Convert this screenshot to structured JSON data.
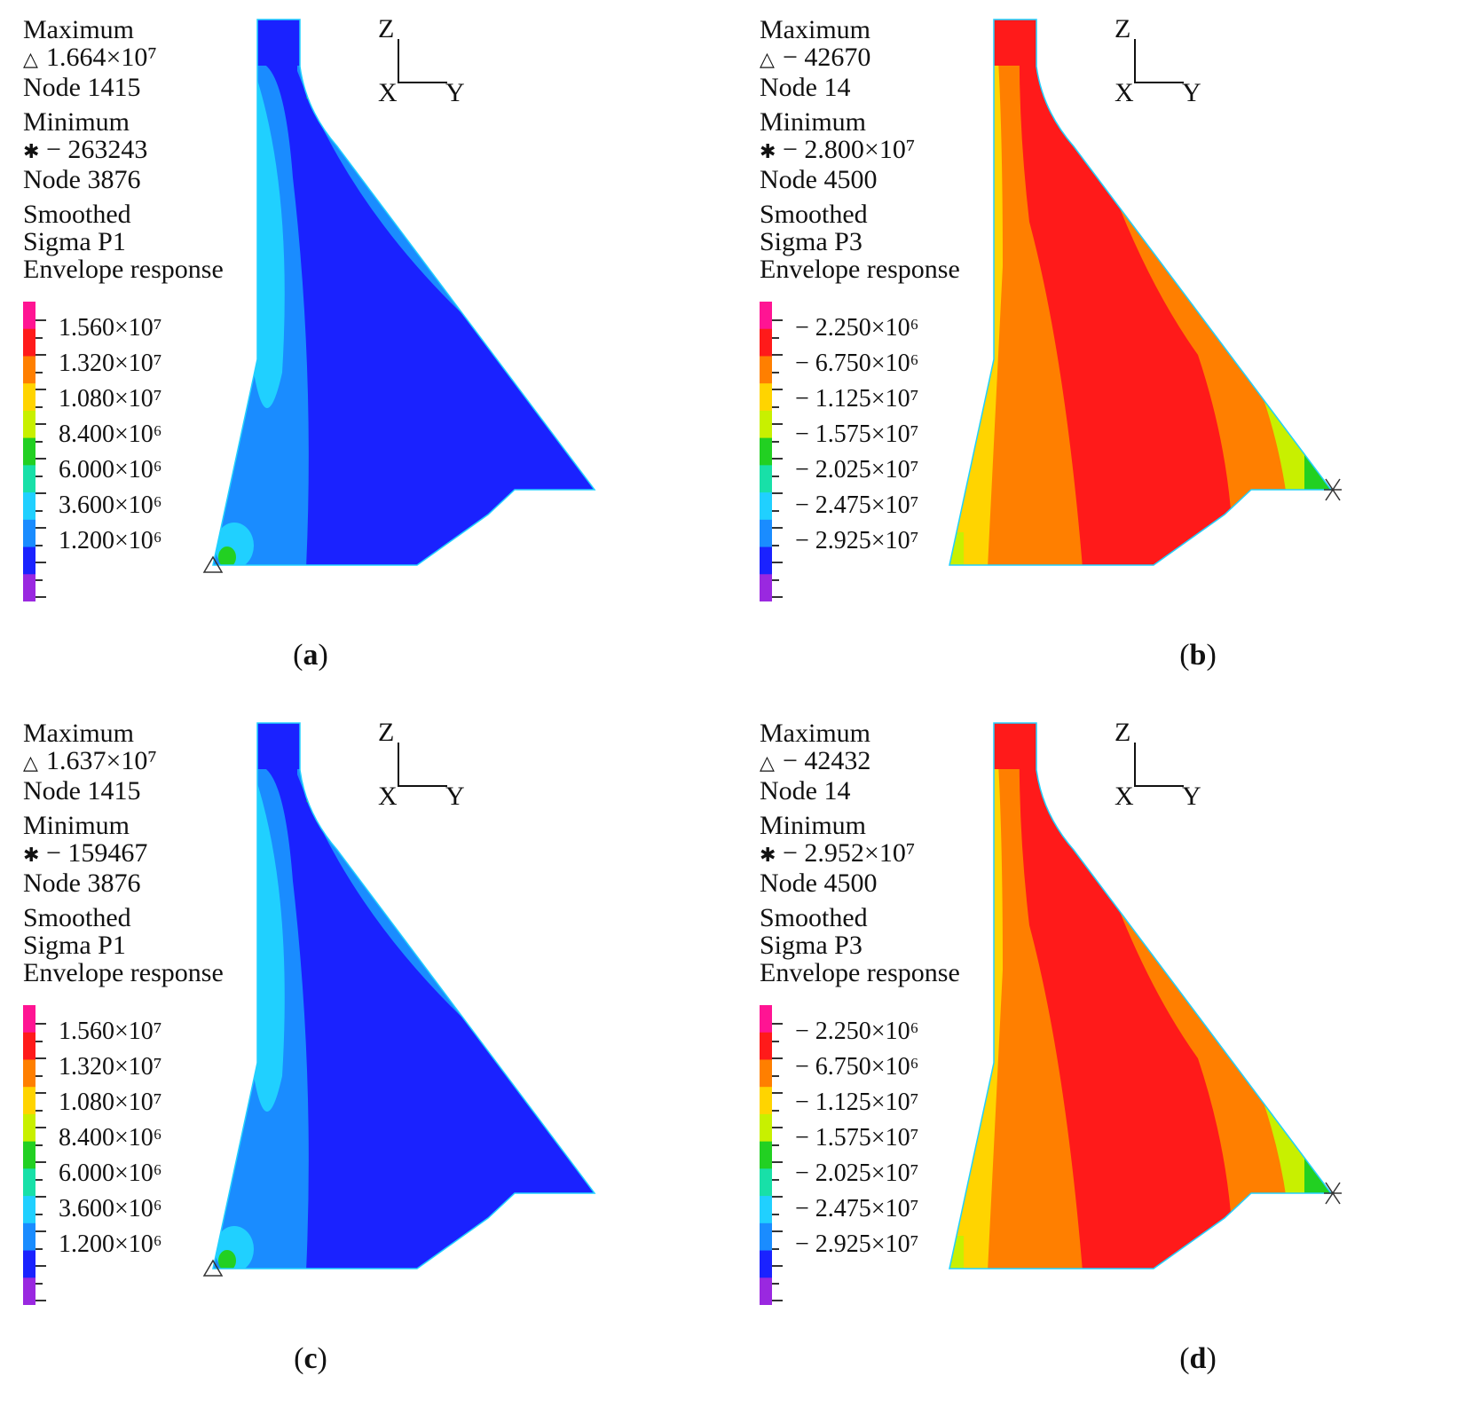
{
  "panels": [
    {
      "caption_letter": "a",
      "max_title": "Maximum",
      "max_symbol": "△",
      "max_value": "1.664×10⁷",
      "max_node": "Node 1415",
      "min_title": "Minimum",
      "min_symbol": "✱",
      "min_value": "− 263243",
      "min_node": "Node 3876",
      "line1": "Smoothed",
      "line2": "Sigma  P1",
      "line3": "Envelope response",
      "legend": [
        "1.560×10⁷",
        "1.320×10⁷",
        "1.080×10⁷",
        "8.400×10⁶",
        "6.000×10⁶",
        "3.600×10⁶",
        "1.200×10⁶"
      ],
      "axis_z": "Z",
      "axis_x": "X",
      "axis_y": "Y",
      "colormap": "tension"
    },
    {
      "caption_letter": "b",
      "max_title": "Maximum",
      "max_symbol": "△",
      "max_value": "− 42670",
      "max_node": "Node 14",
      "min_title": "Minimum",
      "min_symbol": "✱",
      "min_value": "− 2.800×10⁷",
      "min_node": "Node 4500",
      "line1": "Smoothed",
      "line2": "Sigma  P3",
      "line3": "Envelope response",
      "legend": [
        "− 2.250×10⁶",
        "− 6.750×10⁶",
        "− 1.125×10⁷",
        "− 1.575×10⁷",
        "− 2.025×10⁷",
        "− 2.475×10⁷",
        "− 2.925×10⁷"
      ],
      "axis_z": "Z",
      "axis_x": "X",
      "axis_y": "Y",
      "colormap": "compression"
    },
    {
      "caption_letter": "c",
      "max_title": "Maximum",
      "max_symbol": "△",
      "max_value": "1.637×10⁷",
      "max_node": "Node 1415",
      "min_title": "Minimum",
      "min_symbol": "✱",
      "min_value": "− 159467",
      "min_node": "Node 3876",
      "line1": "Smoothed",
      "line2": "Sigma  P1",
      "line3": "Envelope response",
      "legend": [
        "1.560×10⁷",
        "1.320×10⁷",
        "1.080×10⁷",
        "8.400×10⁶",
        "6.000×10⁶",
        "3.600×10⁶",
        "1.200×10⁶"
      ],
      "axis_z": "Z",
      "axis_x": "X",
      "axis_y": "Y",
      "colormap": "tension"
    },
    {
      "caption_letter": "d",
      "max_title": "Maximum",
      "max_symbol": "△",
      "max_value": "− 42432",
      "max_node": "Node 14",
      "min_title": "Minimum",
      "min_symbol": "✱",
      "min_value": "− 2.952×10⁷",
      "min_node": "Node 4500",
      "line1": "Smoothed",
      "line2": "Sigma  P3",
      "line3": "Envelope response",
      "legend": [
        "− 2.250×10⁶",
        "− 6.750×10⁶",
        "− 1.125×10⁷",
        "− 1.575×10⁷",
        "− 2.025×10⁷",
        "− 2.475×10⁷",
        "− 2.925×10⁷"
      ],
      "axis_z": "Z",
      "axis_x": "X",
      "axis_y": "Y",
      "colormap": "compression"
    }
  ],
  "colors": {
    "band_magenta": "#ff1493",
    "band_red": "#ff1a1a",
    "band_orange": "#ff7f00",
    "band_yellow": "#ffd400",
    "band_lime": "#c8f000",
    "band_green": "#22d022",
    "band_teal": "#18e0a8",
    "band_cyan": "#20d0ff",
    "band_sky": "#1a8cff",
    "band_blue": "#1a22ff",
    "band_violet": "#9a28e0"
  }
}
